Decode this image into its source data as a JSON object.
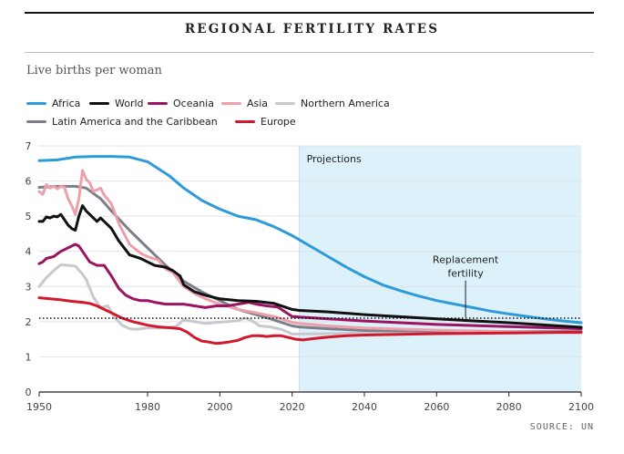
{
  "header": {
    "title": "REGIONAL FERTILITY RATES",
    "subtitle": "Live births per woman"
  },
  "legend": [
    {
      "name": "Africa",
      "color": "#2e9bd8"
    },
    {
      "name": "World",
      "color": "#111111"
    },
    {
      "name": "Oceania",
      "color": "#9b1462"
    },
    {
      "name": "Asia",
      "color": "#eda0aa"
    },
    {
      "name": "Northern America",
      "color": "#c7c9cf"
    },
    {
      "name": "Latin America and the Caribbean",
      "color": "#7c7f89"
    },
    {
      "name": "Europe",
      "color": "#d2182c"
    }
  ],
  "footer": {
    "source": "SOURCE: UN"
  },
  "chart_data": {
    "type": "line",
    "title": "REGIONAL FERTILITY RATES",
    "ylabel": "Live births per woman",
    "xlabel": "",
    "xlim": [
      1950,
      2100
    ],
    "ylim": [
      0,
      7
    ],
    "xticks": [
      1950,
      1980,
      2000,
      2020,
      2040,
      2060,
      2080,
      2100
    ],
    "xtick_labels": [
      "1950",
      "1980",
      "2000",
      "2020",
      "2040",
      "2060",
      "2080",
      "2100"
    ],
    "yticks": [
      0,
      1,
      2,
      3,
      4,
      5,
      6,
      7
    ],
    "ytick_labels": [
      "0",
      "1",
      "2",
      "3",
      "4",
      "5",
      "6",
      "7"
    ],
    "grid": true,
    "projections": {
      "start": 2022,
      "end": 2100,
      "label": "Projections",
      "color": "#ddf1fb"
    },
    "reference_line": {
      "y": 2.1,
      "label_line1": "Replacement",
      "label_line2": "fertility",
      "label_x": 2068,
      "label_y": 3.3
    },
    "series": [
      {
        "name": "Northern America",
        "color": "#c7c9cf",
        "points": [
          [
            1950,
            3.0
          ],
          [
            1952,
            3.25
          ],
          [
            1954,
            3.45
          ],
          [
            1956,
            3.62
          ],
          [
            1958,
            3.6
          ],
          [
            1960,
            3.58
          ],
          [
            1962,
            3.35
          ],
          [
            1963,
            3.2
          ],
          [
            1965,
            2.7
          ],
          [
            1967,
            2.4
          ],
          [
            1969,
            2.45
          ],
          [
            1971,
            2.1
          ],
          [
            1973,
            1.9
          ],
          [
            1975,
            1.8
          ],
          [
            1977,
            1.78
          ],
          [
            1980,
            1.82
          ],
          [
            1983,
            1.82
          ],
          [
            1986,
            1.83
          ],
          [
            1988,
            1.87
          ],
          [
            1990,
            2.05
          ],
          [
            1993,
            2.0
          ],
          [
            1996,
            1.95
          ],
          [
            1999,
            1.98
          ],
          [
            2002,
            2.0
          ],
          [
            2005,
            2.03
          ],
          [
            2007,
            2.1
          ],
          [
            2009,
            2.02
          ],
          [
            2011,
            1.88
          ],
          [
            2014,
            1.85
          ],
          [
            2017,
            1.78
          ],
          [
            2020,
            1.65
          ],
          [
            2022,
            1.65
          ],
          [
            2030,
            1.66
          ],
          [
            2040,
            1.68
          ],
          [
            2060,
            1.7
          ],
          [
            2080,
            1.71
          ],
          [
            2100,
            1.72
          ]
        ]
      },
      {
        "name": "Latin America and the Caribbean",
        "color": "#7c7f89",
        "points": [
          [
            1950,
            5.82
          ],
          [
            1955,
            5.85
          ],
          [
            1960,
            5.85
          ],
          [
            1963,
            5.8
          ],
          [
            1967,
            5.5
          ],
          [
            1970,
            5.15
          ],
          [
            1975,
            4.6
          ],
          [
            1980,
            4.1
          ],
          [
            1985,
            3.6
          ],
          [
            1990,
            3.15
          ],
          [
            1995,
            2.85
          ],
          [
            2000,
            2.6
          ],
          [
            2005,
            2.35
          ],
          [
            2010,
            2.2
          ],
          [
            2015,
            2.05
          ],
          [
            2020,
            1.88
          ],
          [
            2022,
            1.85
          ],
          [
            2030,
            1.8
          ],
          [
            2040,
            1.75
          ],
          [
            2060,
            1.73
          ],
          [
            2080,
            1.72
          ],
          [
            2100,
            1.72
          ]
        ]
      },
      {
        "name": "Asia",
        "color": "#eda0aa",
        "points": [
          [
            1950,
            5.7
          ],
          [
            1951,
            5.62
          ],
          [
            1952,
            5.9
          ],
          [
            1953,
            5.8
          ],
          [
            1954,
            5.86
          ],
          [
            1955,
            5.78
          ],
          [
            1956,
            5.85
          ],
          [
            1957,
            5.82
          ],
          [
            1958,
            5.5
          ],
          [
            1959,
            5.3
          ],
          [
            1960,
            5.05
          ],
          [
            1961,
            5.5
          ],
          [
            1962,
            6.3
          ],
          [
            1963,
            6.05
          ],
          [
            1964,
            5.95
          ],
          [
            1965,
            5.7
          ],
          [
            1966,
            5.75
          ],
          [
            1967,
            5.8
          ],
          [
            1968,
            5.6
          ],
          [
            1970,
            5.35
          ],
          [
            1972,
            4.8
          ],
          [
            1975,
            4.2
          ],
          [
            1978,
            3.95
          ],
          [
            1980,
            3.85
          ],
          [
            1983,
            3.75
          ],
          [
            1985,
            3.5
          ],
          [
            1987,
            3.4
          ],
          [
            1990,
            3.0
          ],
          [
            1993,
            2.8
          ],
          [
            1996,
            2.65
          ],
          [
            2000,
            2.5
          ],
          [
            2005,
            2.35
          ],
          [
            2010,
            2.25
          ],
          [
            2015,
            2.15
          ],
          [
            2020,
            1.98
          ],
          [
            2022,
            1.95
          ],
          [
            2030,
            1.88
          ],
          [
            2040,
            1.82
          ],
          [
            2060,
            1.76
          ],
          [
            2080,
            1.72
          ],
          [
            2100,
            1.68
          ]
        ]
      },
      {
        "name": "Oceania",
        "color": "#9b1462",
        "points": [
          [
            1950,
            3.65
          ],
          [
            1951,
            3.7
          ],
          [
            1952,
            3.8
          ],
          [
            1954,
            3.85
          ],
          [
            1956,
            4.0
          ],
          [
            1958,
            4.1
          ],
          [
            1960,
            4.2
          ],
          [
            1961,
            4.15
          ],
          [
            1962,
            4.0
          ],
          [
            1964,
            3.7
          ],
          [
            1966,
            3.6
          ],
          [
            1968,
            3.6
          ],
          [
            1970,
            3.3
          ],
          [
            1972,
            2.95
          ],
          [
            1974,
            2.75
          ],
          [
            1976,
            2.65
          ],
          [
            1978,
            2.6
          ],
          [
            1980,
            2.6
          ],
          [
            1982,
            2.55
          ],
          [
            1985,
            2.5
          ],
          [
            1988,
            2.5
          ],
          [
            1990,
            2.5
          ],
          [
            1993,
            2.45
          ],
          [
            1996,
            2.4
          ],
          [
            1999,
            2.45
          ],
          [
            2002,
            2.45
          ],
          [
            2005,
            2.5
          ],
          [
            2008,
            2.55
          ],
          [
            2010,
            2.5
          ],
          [
            2013,
            2.45
          ],
          [
            2016,
            2.42
          ],
          [
            2020,
            2.15
          ],
          [
            2022,
            2.13
          ],
          [
            2030,
            2.08
          ],
          [
            2040,
            2.02
          ],
          [
            2060,
            1.92
          ],
          [
            2080,
            1.86
          ],
          [
            2100,
            1.8
          ]
        ]
      },
      {
        "name": "Europe",
        "color": "#d2182c",
        "points": [
          [
            1950,
            2.68
          ],
          [
            1953,
            2.65
          ],
          [
            1956,
            2.62
          ],
          [
            1959,
            2.58
          ],
          [
            1962,
            2.55
          ],
          [
            1964,
            2.52
          ],
          [
            1966,
            2.45
          ],
          [
            1968,
            2.35
          ],
          [
            1970,
            2.25
          ],
          [
            1973,
            2.1
          ],
          [
            1976,
            2.0
          ],
          [
            1980,
            1.9
          ],
          [
            1983,
            1.85
          ],
          [
            1986,
            1.83
          ],
          [
            1989,
            1.8
          ],
          [
            1991,
            1.7
          ],
          [
            1993,
            1.55
          ],
          [
            1995,
            1.45
          ],
          [
            1997,
            1.42
          ],
          [
            1999,
            1.38
          ],
          [
            2001,
            1.4
          ],
          [
            2003,
            1.43
          ],
          [
            2005,
            1.47
          ],
          [
            2007,
            1.55
          ],
          [
            2009,
            1.6
          ],
          [
            2011,
            1.6
          ],
          [
            2013,
            1.58
          ],
          [
            2015,
            1.6
          ],
          [
            2017,
            1.6
          ],
          [
            2019,
            1.55
          ],
          [
            2021,
            1.5
          ],
          [
            2023,
            1.48
          ],
          [
            2026,
            1.52
          ],
          [
            2030,
            1.56
          ],
          [
            2035,
            1.6
          ],
          [
            2040,
            1.62
          ],
          [
            2060,
            1.66
          ],
          [
            2080,
            1.68
          ],
          [
            2100,
            1.7
          ]
        ]
      },
      {
        "name": "World",
        "color": "#111111",
        "points": [
          [
            1950,
            4.85
          ],
          [
            1951,
            4.85
          ],
          [
            1952,
            4.98
          ],
          [
            1953,
            4.95
          ],
          [
            1954,
            5.0
          ],
          [
            1955,
            4.98
          ],
          [
            1956,
            5.05
          ],
          [
            1957,
            4.9
          ],
          [
            1958,
            4.75
          ],
          [
            1959,
            4.65
          ],
          [
            1960,
            4.6
          ],
          [
            1961,
            5.0
          ],
          [
            1962,
            5.3
          ],
          [
            1963,
            5.15
          ],
          [
            1964,
            5.05
          ],
          [
            1965,
            4.95
          ],
          [
            1966,
            4.85
          ],
          [
            1967,
            4.95
          ],
          [
            1968,
            4.85
          ],
          [
            1970,
            4.65
          ],
          [
            1972,
            4.3
          ],
          [
            1975,
            3.9
          ],
          [
            1978,
            3.8
          ],
          [
            1980,
            3.7
          ],
          [
            1982,
            3.6
          ],
          [
            1985,
            3.55
          ],
          [
            1987,
            3.45
          ],
          [
            1989,
            3.3
          ],
          [
            1990,
            3.05
          ],
          [
            1993,
            2.85
          ],
          [
            1996,
            2.75
          ],
          [
            2000,
            2.65
          ],
          [
            2005,
            2.6
          ],
          [
            2010,
            2.58
          ],
          [
            2015,
            2.52
          ],
          [
            2020,
            2.35
          ],
          [
            2022,
            2.32
          ],
          [
            2030,
            2.28
          ],
          [
            2040,
            2.2
          ],
          [
            2060,
            2.08
          ],
          [
            2080,
            1.97
          ],
          [
            2100,
            1.84
          ]
        ]
      },
      {
        "name": "Africa",
        "color": "#2e9bd8",
        "points": [
          [
            1950,
            6.58
          ],
          [
            1955,
            6.6
          ],
          [
            1960,
            6.68
          ],
          [
            1965,
            6.7
          ],
          [
            1970,
            6.7
          ],
          [
            1975,
            6.68
          ],
          [
            1980,
            6.55
          ],
          [
            1983,
            6.35
          ],
          [
            1986,
            6.15
          ],
          [
            1990,
            5.8
          ],
          [
            1995,
            5.45
          ],
          [
            2000,
            5.2
          ],
          [
            2005,
            5.0
          ],
          [
            2010,
            4.9
          ],
          [
            2015,
            4.7
          ],
          [
            2020,
            4.45
          ],
          [
            2025,
            4.15
          ],
          [
            2030,
            3.85
          ],
          [
            2035,
            3.55
          ],
          [
            2040,
            3.28
          ],
          [
            2045,
            3.05
          ],
          [
            2050,
            2.88
          ],
          [
            2055,
            2.73
          ],
          [
            2060,
            2.6
          ],
          [
            2065,
            2.5
          ],
          [
            2070,
            2.4
          ],
          [
            2075,
            2.3
          ],
          [
            2080,
            2.22
          ],
          [
            2085,
            2.15
          ],
          [
            2090,
            2.08
          ],
          [
            2095,
            2.02
          ],
          [
            2100,
            1.97
          ]
        ]
      }
    ]
  }
}
